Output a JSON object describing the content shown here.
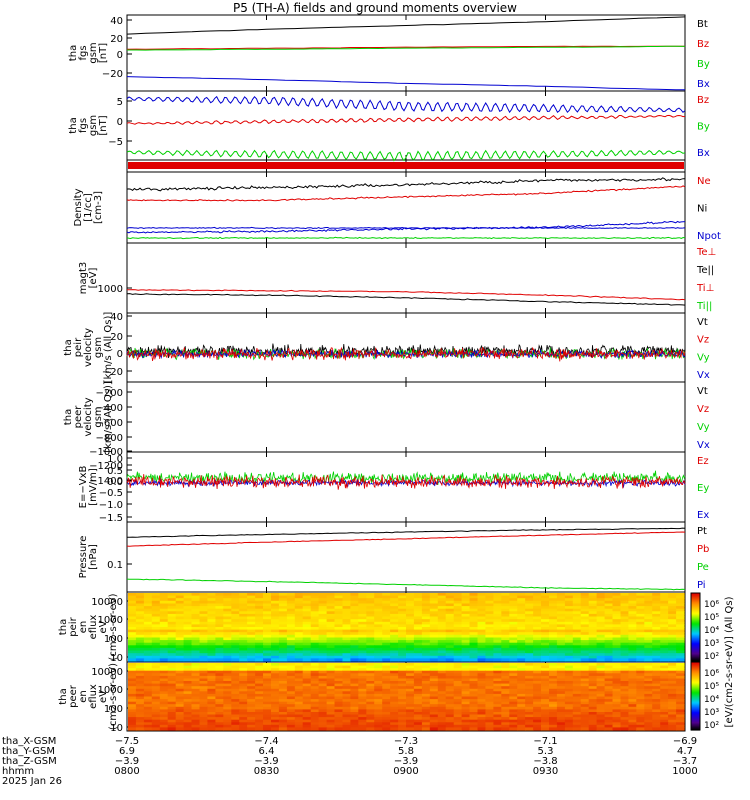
{
  "title": "P5 (TH-A) fields and ground moments overview",
  "colors": {
    "black": "#000000",
    "red": "#e00000",
    "green": "#00d000",
    "blue": "#0000d0"
  },
  "panels": [
    {
      "id": "fgs",
      "ylabel": [
        "tha",
        "fgs",
        "gsm",
        "[nT]"
      ],
      "yticks": [
        "40",
        "20",
        "0",
        "−20"
      ],
      "legend": [
        {
          "text": "Bt",
          "color": "black"
        },
        {
          "text": "Bz",
          "color": "red"
        },
        {
          "text": "By",
          "color": "green"
        },
        {
          "text": "Bx",
          "color": "blue"
        }
      ]
    },
    {
      "id": "fgs_hp",
      "ylabel": [
        "tha",
        "fgs",
        "gsm",
        "[nT]"
      ],
      "yticks": [
        "5",
        "0",
        "−5"
      ],
      "legend": [
        {
          "text": "Bz",
          "color": "red"
        },
        {
          "text": "By",
          "color": "green"
        },
        {
          "text": "Bx",
          "color": "blue"
        }
      ]
    },
    {
      "id": "density",
      "ylabel": [
        "Density",
        "[1/cc]",
        "[cm-3]"
      ],
      "yticks": [],
      "legend": [
        {
          "text": "Ne",
          "color": "red"
        },
        {
          "text": "Ni",
          "color": "black"
        },
        {
          "text": "Npot",
          "color": "blue"
        }
      ]
    },
    {
      "id": "temp",
      "ylabel": [
        "magt3",
        "[eV]"
      ],
      "yticks": [
        "1000"
      ],
      "legend": [
        {
          "text": "Te⊥",
          "color": "red"
        },
        {
          "text": "Te||",
          "color": "black"
        },
        {
          "text": "Ti⊥",
          "color": "red"
        },
        {
          "text": "Ti||",
          "color": "green"
        }
      ]
    },
    {
      "id": "peir_vel",
      "ylabel": [
        "tha",
        "peir",
        "velocity",
        "gsm",
        "[km/s (All Qs)]"
      ],
      "yticks": [
        "40",
        "20",
        "0",
        "−20"
      ],
      "legend": [
        {
          "text": "Vt",
          "color": "black"
        },
        {
          "text": "Vz",
          "color": "red"
        },
        {
          "text": "Vy",
          "color": "green"
        },
        {
          "text": "Vx",
          "color": "blue"
        }
      ]
    },
    {
      "id": "peer_vel",
      "ylabel": [
        "tha",
        "peer",
        "velocity",
        "gsm",
        "[km/s (All Qs)]"
      ],
      "yticks": [
        "−200",
        "−400",
        "−600",
        "−800",
        "−1000",
        "−1200",
        "−1400"
      ],
      "legend": [
        {
          "text": "Vt",
          "color": "black"
        },
        {
          "text": "Vz",
          "color": "red"
        },
        {
          "text": "Vy",
          "color": "green"
        },
        {
          "text": "Vx",
          "color": "blue"
        }
      ]
    },
    {
      "id": "efield",
      "ylabel": [
        "E=−VxB",
        "[mV/m]"
      ],
      "yticks": [
        "1.0",
        "0.5",
        "0.0",
        "−0.5",
        "−1.0",
        "−1.5"
      ],
      "legend": [
        {
          "text": "Ez",
          "color": "red"
        },
        {
          "text": "Ey",
          "color": "green"
        },
        {
          "text": "Ex",
          "color": "blue"
        }
      ]
    },
    {
      "id": "pressure",
      "ylabel": [
        "Pressure",
        "[nPa]"
      ],
      "yticks": [
        "0.1"
      ],
      "legend": [
        {
          "text": "Pt",
          "color": "black"
        },
        {
          "text": "Pb",
          "color": "red"
        },
        {
          "text": "Pe",
          "color": "green"
        },
        {
          "text": "Pi",
          "color": "blue"
        }
      ]
    },
    {
      "id": "ion_spec",
      "ylabel": [
        "tha",
        "peir",
        "en",
        "eflux",
        "eV",
        "(cm2-s-sr-eV)"
      ],
      "yticks": [
        "10000",
        "1000",
        "100",
        "10"
      ],
      "legend": []
    },
    {
      "id": "ele_spec",
      "ylabel": [
        "tha",
        "peer",
        "en",
        "eflux",
        "eV",
        "(cm2-s-sr-eV)"
      ],
      "yticks": [
        "10000",
        "1000",
        "100",
        "10"
      ],
      "legend": []
    }
  ],
  "colorbar": {
    "ticks_top": [
      "10⁶",
      "10⁵",
      "10⁴",
      "10³",
      "10²"
    ],
    "ticks_bottom": [
      "10⁶",
      "10⁵",
      "10⁴",
      "10³",
      "10²"
    ],
    "label": "[eV/(cm2-s-sr-eV)] (All Qs)"
  },
  "footer": {
    "rows": [
      {
        "label": "tha_X-GSM",
        "values": [
          "−7.5",
          "−7.4",
          "−7.3",
          "−7.1",
          "−6.9"
        ]
      },
      {
        "label": "tha_Y-GSM",
        "values": [
          "6.9",
          "6.4",
          "5.8",
          "5.3",
          "4.7"
        ]
      },
      {
        "label": "tha_Z-GSM",
        "values": [
          "−3.9",
          "−3.9",
          "−3.9",
          "−3.8",
          "−3.7"
        ]
      },
      {
        "label": "hhmm",
        "values": [
          "0800",
          "0830",
          "0900",
          "0930",
          "1000"
        ]
      }
    ],
    "date": "2025 Jan 26"
  },
  "chart_data": [
    {
      "type": "line",
      "title": "P5 (TH-A) fields and ground moments overview",
      "panel": "fgs",
      "x": [
        "0800",
        "0830",
        "0900",
        "0930",
        "1000"
      ],
      "ylim": [
        -35,
        45
      ],
      "series": [
        {
          "name": "Bt",
          "values": [
            25,
            30,
            34,
            38,
            43
          ]
        },
        {
          "name": "Bz",
          "values": [
            9,
            10,
            11,
            12,
            12
          ]
        },
        {
          "name": "By",
          "values": [
            8,
            9,
            10,
            11,
            12
          ]
        },
        {
          "name": "Bx",
          "values": [
            -20,
            -23,
            -27,
            -30,
            -34
          ]
        }
      ]
    },
    {
      "type": "line",
      "panel": "fgs_hp",
      "x": [
        "0800",
        "0830",
        "0900",
        "0930",
        "1000"
      ],
      "ylim": [
        -9,
        9
      ],
      "series": [
        {
          "name": "Bz",
          "values": [
            0.5,
            1,
            1.5,
            2,
            2.5
          ]
        },
        {
          "name": "By",
          "values": [
            -7,
            -7.5,
            -8,
            -7.5,
            -7
          ]
        },
        {
          "name": "Bx",
          "values": [
            7,
            6.5,
            5,
            4.5,
            4
          ]
        }
      ]
    },
    {
      "type": "line",
      "panel": "density",
      "x": [
        "0800",
        "0830",
        "0900",
        "0930",
        "1000"
      ],
      "series": [
        {
          "name": "Ne",
          "values": [
            0.6,
            0.6,
            0.65,
            0.7,
            0.8
          ]
        },
        {
          "name": "Ni",
          "values": [
            0.75,
            0.78,
            0.82,
            0.88,
            0.9
          ]
        },
        {
          "name": "Npot",
          "values": [
            0.15,
            0.16,
            0.2,
            0.22,
            0.3
          ]
        }
      ]
    },
    {
      "type": "line",
      "panel": "temp",
      "x": [
        "0800",
        "0830",
        "0900",
        "0930",
        "1000"
      ],
      "series": [
        {
          "name": "Te⊥",
          "values": [
            1200,
            1150,
            1100,
            950,
            780
          ]
        },
        {
          "name": "Te||",
          "values": [
            4200,
            4100,
            4000,
            3900,
            3800
          ]
        },
        {
          "name": "Ti⊥",
          "values": [
            5300,
            5200,
            5100,
            5050,
            4950
          ]
        },
        {
          "name": "Ti||",
          "values": [
            1000,
            950,
            850,
            720,
            620
          ]
        }
      ]
    },
    {
      "type": "line",
      "panel": "peir_vel",
      "x": [
        "0800",
        "0830",
        "0900",
        "0930",
        "1000"
      ],
      "ylim": [
        -25,
        40
      ],
      "series": [
        {
          "name": "Vt",
          "values": [
            15,
            15,
            15,
            15,
            15
          ]
        },
        {
          "name": "Vz",
          "values": [
            0,
            0,
            0,
            0,
            0
          ]
        },
        {
          "name": "Vy",
          "values": [
            0,
            0,
            0,
            0,
            0
          ]
        },
        {
          "name": "Vx",
          "values": [
            0,
            0,
            0,
            0,
            0
          ]
        }
      ]
    },
    {
      "type": "line",
      "panel": "efield",
      "x": [
        "0800",
        "0830",
        "0900",
        "0930",
        "1000"
      ],
      "ylim": [
        -1.7,
        1.0
      ],
      "series": [
        {
          "name": "Ez",
          "values": [
            -0.1,
            -0.1,
            -0.1,
            -0.1,
            -0.1
          ]
        },
        {
          "name": "Ey",
          "values": [
            0.2,
            0.2,
            0.2,
            0.2,
            0.2
          ]
        },
        {
          "name": "Ex",
          "values": [
            0,
            0,
            0,
            0,
            0
          ]
        }
      ]
    },
    {
      "type": "line",
      "panel": "pressure",
      "x": [
        "0800",
        "0830",
        "0900",
        "0930",
        "1000"
      ],
      "series": [
        {
          "name": "Pt",
          "values": [
            0.3,
            0.34,
            0.38,
            0.42,
            0.45
          ]
        },
        {
          "name": "Pb",
          "values": [
            0.2,
            0.24,
            0.28,
            0.33,
            0.38
          ]
        },
        {
          "name": "Pe",
          "values": [
            0.045,
            0.04,
            0.035,
            0.03,
            0.028
          ]
        }
      ]
    },
    {
      "type": "heatmap",
      "panel": "ion_spec",
      "ylim": [
        6,
        20000
      ]
    },
    {
      "type": "heatmap",
      "panel": "ele_spec",
      "ylim": [
        6,
        20000
      ]
    }
  ]
}
